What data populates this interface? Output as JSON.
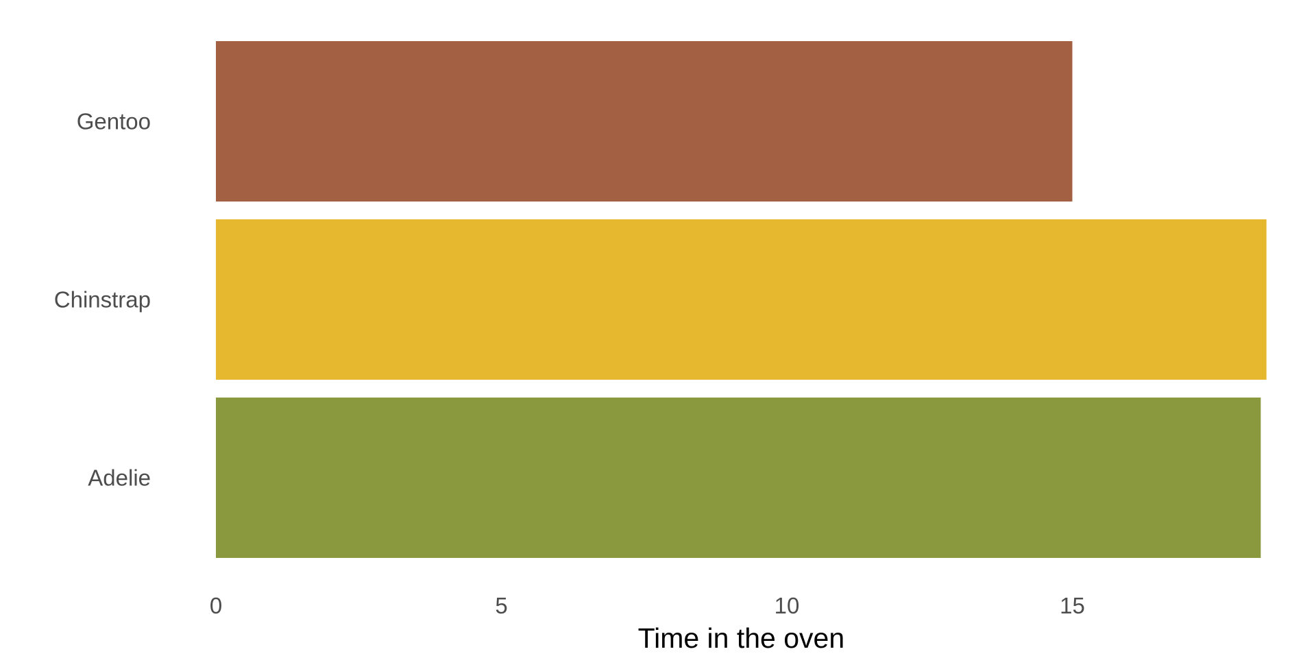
{
  "chart_data": {
    "type": "bar",
    "orientation": "horizontal",
    "categories": [
      "Adelie",
      "Chinstrap",
      "Gentoo"
    ],
    "values": [
      18.3,
      18.4,
      15.0
    ],
    "colors": [
      "#8a993e",
      "#e6b82f",
      "#a46043"
    ],
    "xlabel": "Time in the oven",
    "ylabel": "",
    "xlim": [
      0,
      18.4
    ],
    "xticks": [
      0,
      5,
      10,
      15
    ],
    "grid": false,
    "legend": "none"
  }
}
